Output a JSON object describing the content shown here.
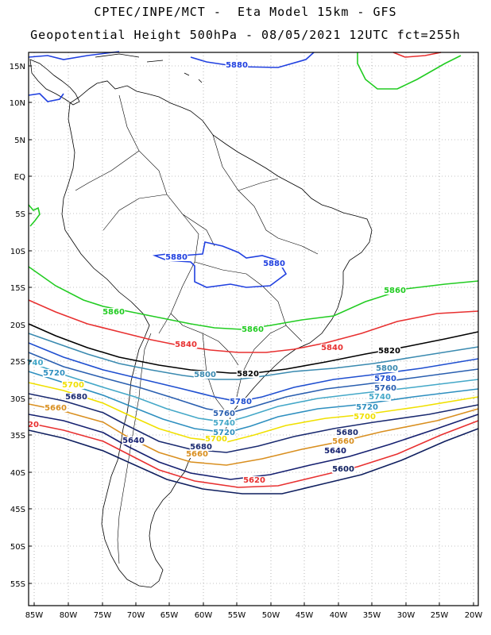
{
  "header": {
    "line1": "CPTEC/INPE/MCT -  Eta Model 15km - GFS",
    "line2": "Geopotential Height 500hPa - 08/05/2021 12UTC fct=255h"
  },
  "axes": {
    "lat_labels": [
      "15N",
      "10N",
      "5N",
      "EQ",
      "5S",
      "10S",
      "15S",
      "20S",
      "25S",
      "30S",
      "35S",
      "40S",
      "45S",
      "50S",
      "55S"
    ],
    "lon_labels": [
      "85W",
      "80W",
      "75W",
      "70W",
      "65W",
      "60W",
      "55W",
      "50W",
      "45W",
      "40W",
      "35W",
      "30W",
      "25W",
      "20W"
    ],
    "lat_range": [
      -58,
      16
    ],
    "lon_range": [
      -86,
      -20
    ],
    "grid": true,
    "grid_style": "dotted"
  },
  "colors": {
    "5560": "#1a2a7a",
    "5580": "#1a2a7a",
    "5600": "#0f1f5f",
    "5620": "#e83030",
    "5640": "#152070",
    "5660": "#d98f1f",
    "5680": "#1a2a70",
    "5700": "#f0e000",
    "5720": "#2e8fbf",
    "5740": "#44a8c8",
    "5760": "#2a5fb0",
    "5780": "#1f4fd0",
    "5800": "#3a8ab0",
    "5820": "#000000",
    "5840": "#e83030",
    "5860": "#22cc22",
    "5880": "#2040e0"
  },
  "labels": [
    {
      "text": "5880"
    },
    {
      "text": "5880"
    },
    {
      "text": "5880"
    },
    {
      "text": "5860"
    },
    {
      "text": "5860"
    },
    {
      "text": "5860"
    },
    {
      "text": "5840"
    },
    {
      "text": "5840"
    },
    {
      "text": "5820"
    },
    {
      "text": "5820"
    },
    {
      "text": "5800"
    },
    {
      "text": "5800"
    },
    {
      "text": "5780"
    },
    {
      "text": "5780"
    },
    {
      "text": "5760"
    },
    {
      "text": "5760"
    },
    {
      "text": "5740"
    },
    {
      "text": "5740"
    },
    {
      "text": "740"
    },
    {
      "text": "5720"
    },
    {
      "text": "5720"
    },
    {
      "text": "5720"
    },
    {
      "text": "5700"
    },
    {
      "text": "5700"
    },
    {
      "text": "5700"
    },
    {
      "text": "5680"
    },
    {
      "text": "5680"
    },
    {
      "text": "5680"
    },
    {
      "text": "5660"
    },
    {
      "text": "5660"
    },
    {
      "text": "5660"
    },
    {
      "text": "5640"
    },
    {
      "text": "5640"
    },
    {
      "text": "5620"
    },
    {
      "text": "20"
    },
    {
      "text": "5600"
    }
  ]
}
